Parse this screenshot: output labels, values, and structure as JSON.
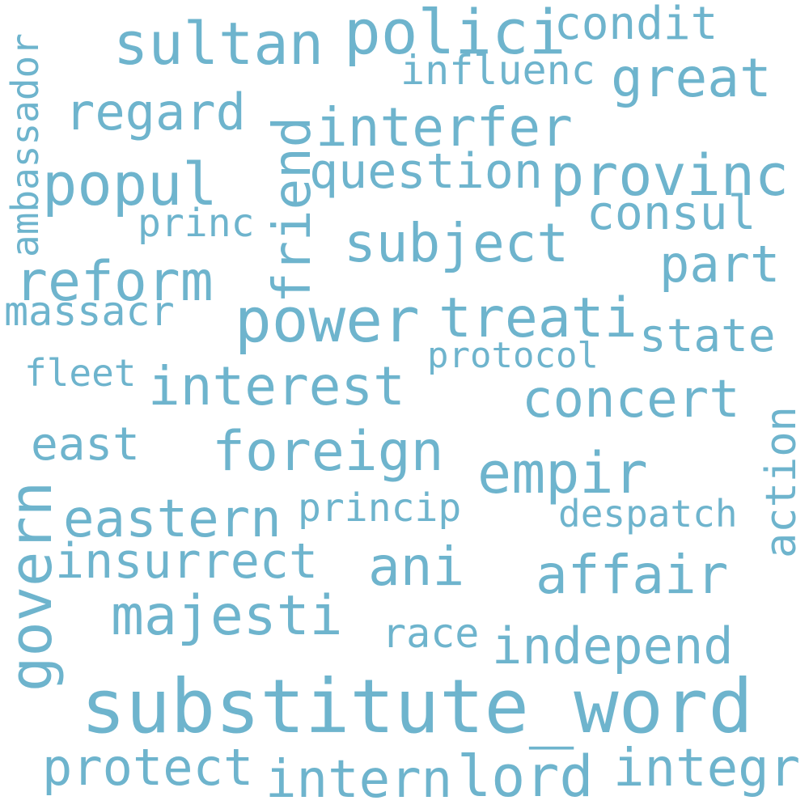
{
  "style": {
    "text_color": "#6eb4cd",
    "background": "#ffffff"
  },
  "words": {
    "sultan": "sultan",
    "polici": "polici",
    "condit": "condit",
    "influenc": "influenc",
    "great": "great",
    "regard": "regard",
    "interfer": "interfer",
    "friend": "friend",
    "ambassador": "ambassador",
    "popul": "popul",
    "question": "question",
    "provinc": "provinc",
    "princ": "princ",
    "consul": "consul",
    "subject": "subject",
    "part": "part",
    "reform": "reform",
    "massacr": "massacr",
    "power": "power",
    "treati": "treati",
    "state": "state",
    "protocol": "protocol",
    "fleet": "fleet",
    "interest": "interest",
    "concert": "concert",
    "action": "action",
    "east": "east",
    "foreign": "foreign",
    "empir": "empir",
    "govern": "govern",
    "eastern": "eastern",
    "princip": "princip",
    "despatch": "despatch",
    "insurrect": "insurrect",
    "ani": "ani",
    "affair": "affair",
    "majesti": "majesti",
    "race": "race",
    "independ": "independ",
    "substitute_word": "substitute_word",
    "protect": "protect",
    "intern": "intern",
    "lord": "lord",
    "integr": "integr"
  }
}
